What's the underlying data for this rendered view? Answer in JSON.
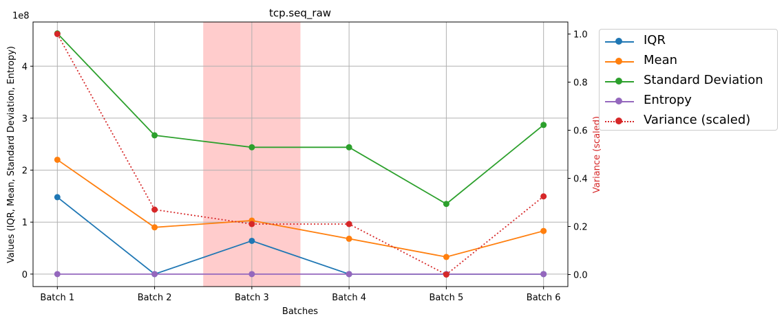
{
  "chart_data": {
    "type": "line",
    "title": "tcp.seq_raw",
    "xlabel": "Batches",
    "ylabel": "Values (IQR, Mean, Standard Deviation, Entropy)",
    "ylabel_right": "Variance (scaled)",
    "y_multiplier": "1e8",
    "categories": [
      "Batch 1",
      "Batch 2",
      "Batch 3",
      "Batch 4",
      "Batch 5",
      "Batch 6"
    ],
    "ylim": [
      -0.24,
      4.85
    ],
    "yticks": [
      0,
      1,
      2,
      3,
      4
    ],
    "ylim_right": [
      -0.05,
      1.05
    ],
    "yticks_right": [
      0.0,
      0.2,
      0.4,
      0.6,
      0.8,
      1.0
    ],
    "grid": true,
    "highlight_span": {
      "from": 1.5,
      "to": 2.5,
      "color": "#ffcccc"
    },
    "legend_position": "outside-right",
    "series": [
      {
        "name": "IQR",
        "axis": "left",
        "color": "#1f77b4",
        "style": "solid",
        "values": [
          1.48,
          0.0,
          0.64,
          0.0,
          0.0,
          0.0
        ]
      },
      {
        "name": "Mean",
        "axis": "left",
        "color": "#ff7f0e",
        "style": "solid",
        "values": [
          2.2,
          0.9,
          1.03,
          0.68,
          0.33,
          0.83
        ]
      },
      {
        "name": "Standard Deviation",
        "axis": "left",
        "color": "#2ca02c",
        "style": "solid",
        "values": [
          4.63,
          2.67,
          2.44,
          2.44,
          1.35,
          2.87
        ]
      },
      {
        "name": "Entropy",
        "axis": "left",
        "color": "#9467bd",
        "style": "solid",
        "values": [
          0,
          0,
          0,
          0,
          0,
          0
        ]
      },
      {
        "name": "Variance (scaled)",
        "axis": "right",
        "color": "#d62728",
        "style": "dotted",
        "values": [
          1.0,
          0.27,
          0.21,
          0.21,
          0.0,
          0.325
        ]
      }
    ]
  }
}
